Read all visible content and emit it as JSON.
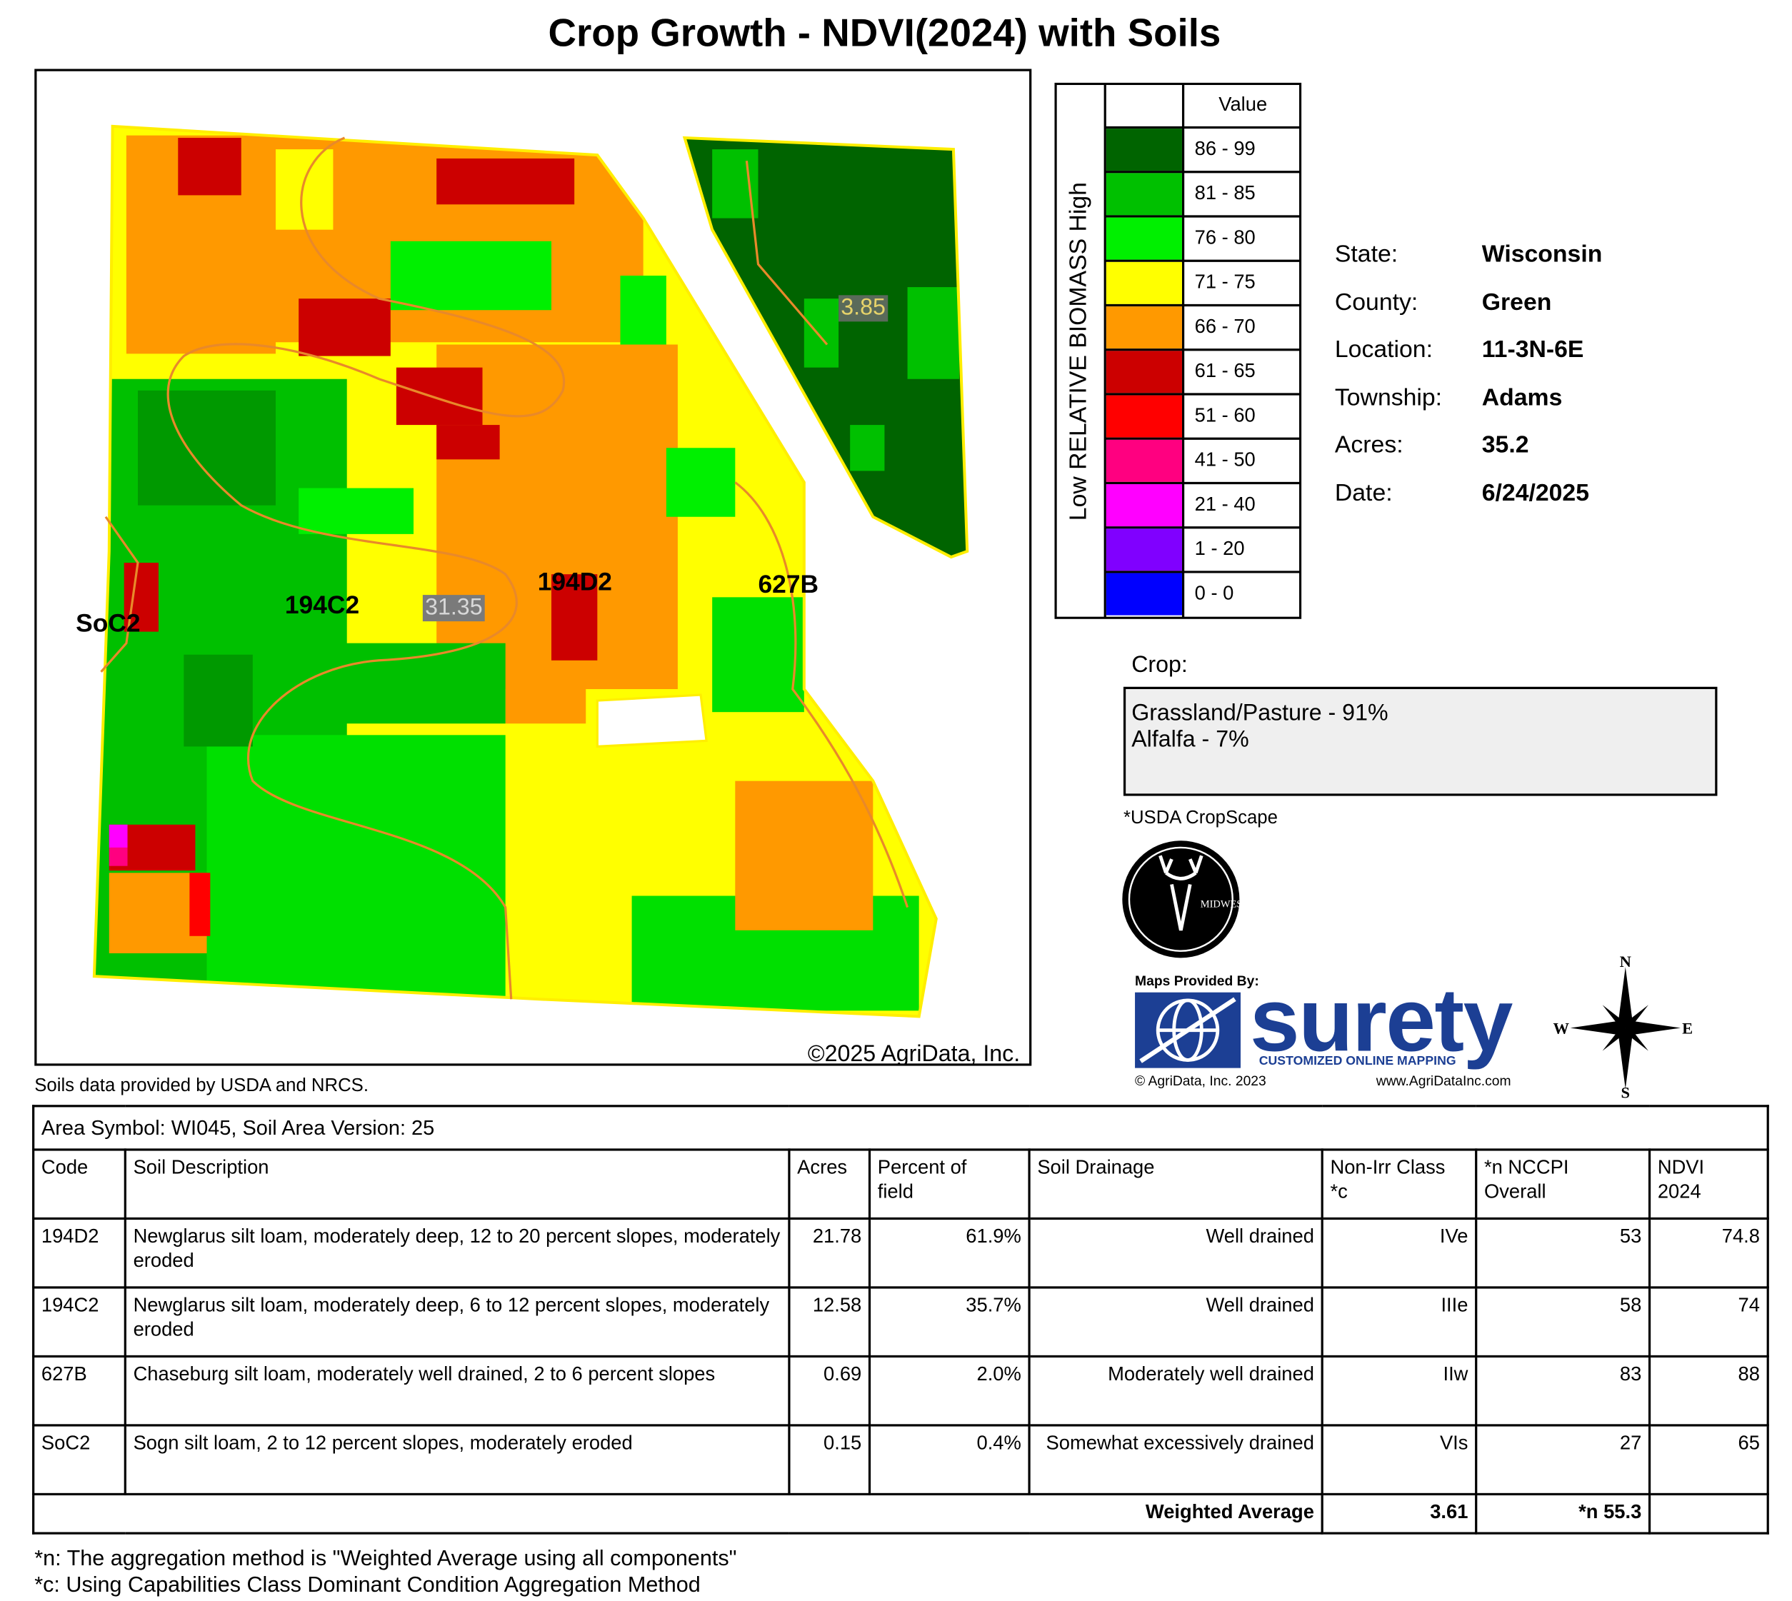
{
  "header": {
    "title": "Crop Growth - NDVI(2024) with Soils"
  },
  "map": {
    "soil_labels": [
      "SoC2",
      "194C2",
      "194D2",
      "627B"
    ],
    "acre_labels": [
      "31.35",
      "3.85"
    ],
    "copyright": "©2025 AgriData, Inc."
  },
  "legend": {
    "axis_label": "Low RELATIVE BIOMASS High",
    "header": "Value",
    "items": [
      {
        "label": "86 - 99",
        "color": "#006400"
      },
      {
        "label": "81 - 85",
        "color": "#00c000"
      },
      {
        "label": "76 - 80",
        "color": "#00f000"
      },
      {
        "label": "71 - 75",
        "color": "#ffff00"
      },
      {
        "label": "66 - 70",
        "color": "#ff9900"
      },
      {
        "label": "61 - 65",
        "color": "#cc0000"
      },
      {
        "label": "51 - 60",
        "color": "#ff0000"
      },
      {
        "label": "41 - 50",
        "color": "#ff0080"
      },
      {
        "label": "21 - 40",
        "color": "#ff00ff"
      },
      {
        "label": "1 - 20",
        "color": "#8000ff"
      },
      {
        "label": "0 - 0",
        "color": "#0000ff"
      }
    ]
  },
  "info": {
    "rows": [
      [
        "State:",
        "Wisconsin"
      ],
      [
        "County:",
        "Green"
      ],
      [
        "Location:",
        "11-3N-6E"
      ],
      [
        "Township:",
        "Adams"
      ],
      [
        "Acres:",
        "35.2"
      ],
      [
        "Date:",
        "6/24/2025"
      ]
    ]
  },
  "crop": {
    "heading": "Crop:",
    "items": [
      "Grassland/Pasture - 91%",
      "Alfalfa - 7%"
    ],
    "source": "*USDA CropScape"
  },
  "branding": {
    "logo_text": "MIDWEST",
    "provided_by": "Maps Provided By:",
    "brand": "surety",
    "tagline": "CUSTOMIZED ONLINE MAPPING",
    "copyright": "© AgriData, Inc. 2023",
    "url": "www.AgriDataInc.com",
    "compass": {
      "n": "N",
      "s": "S",
      "w": "W",
      "e": "E"
    }
  },
  "soils_note": "Soils data provided by USDA and NRCS.",
  "table": {
    "caption": "Area Symbol: WI045, Soil Area Version: 25",
    "columns": [
      [
        "Code"
      ],
      [
        "Soil Description"
      ],
      [
        "Acres"
      ],
      [
        "Percent of",
        "field"
      ],
      [
        "Soil Drainage"
      ],
      [
        "Non-Irr Class",
        "*c"
      ],
      [
        "*n NCCPI",
        "Overall"
      ],
      [
        "NDVI",
        "2024"
      ]
    ],
    "rows": [
      [
        "194D2",
        "Newglarus silt loam, moderately deep, 12 to 20 percent slopes, moderately eroded",
        "21.78",
        "61.9%",
        "Well drained",
        "IVe",
        "53",
        "74.8"
      ],
      [
        "194C2",
        "Newglarus silt loam, moderately deep, 6 to 12 percent slopes, moderately eroded",
        "12.58",
        "35.7%",
        "Well drained",
        "IIIe",
        "58",
        "74"
      ],
      [
        "627B",
        "Chaseburg silt loam, moderately well drained, 2 to 6 percent slopes",
        "0.69",
        "2.0%",
        "Moderately well drained",
        "IIw",
        "83",
        "88"
      ],
      [
        "SoC2",
        "Sogn silt loam, 2 to 12 percent slopes, moderately eroded",
        "0.15",
        "0.4%",
        "Somewhat excessively drained",
        "VIs",
        "27",
        "65"
      ]
    ],
    "total": {
      "label": "Weighted Average",
      "non_irr": "3.61",
      "nccpi": "*n 55.3"
    }
  },
  "footnotes": [
    "*n: The aggregation method is \"Weighted Average using all components\"",
    "*c: Using Capabilities Class Dominant Condition Aggregation Method"
  ]
}
